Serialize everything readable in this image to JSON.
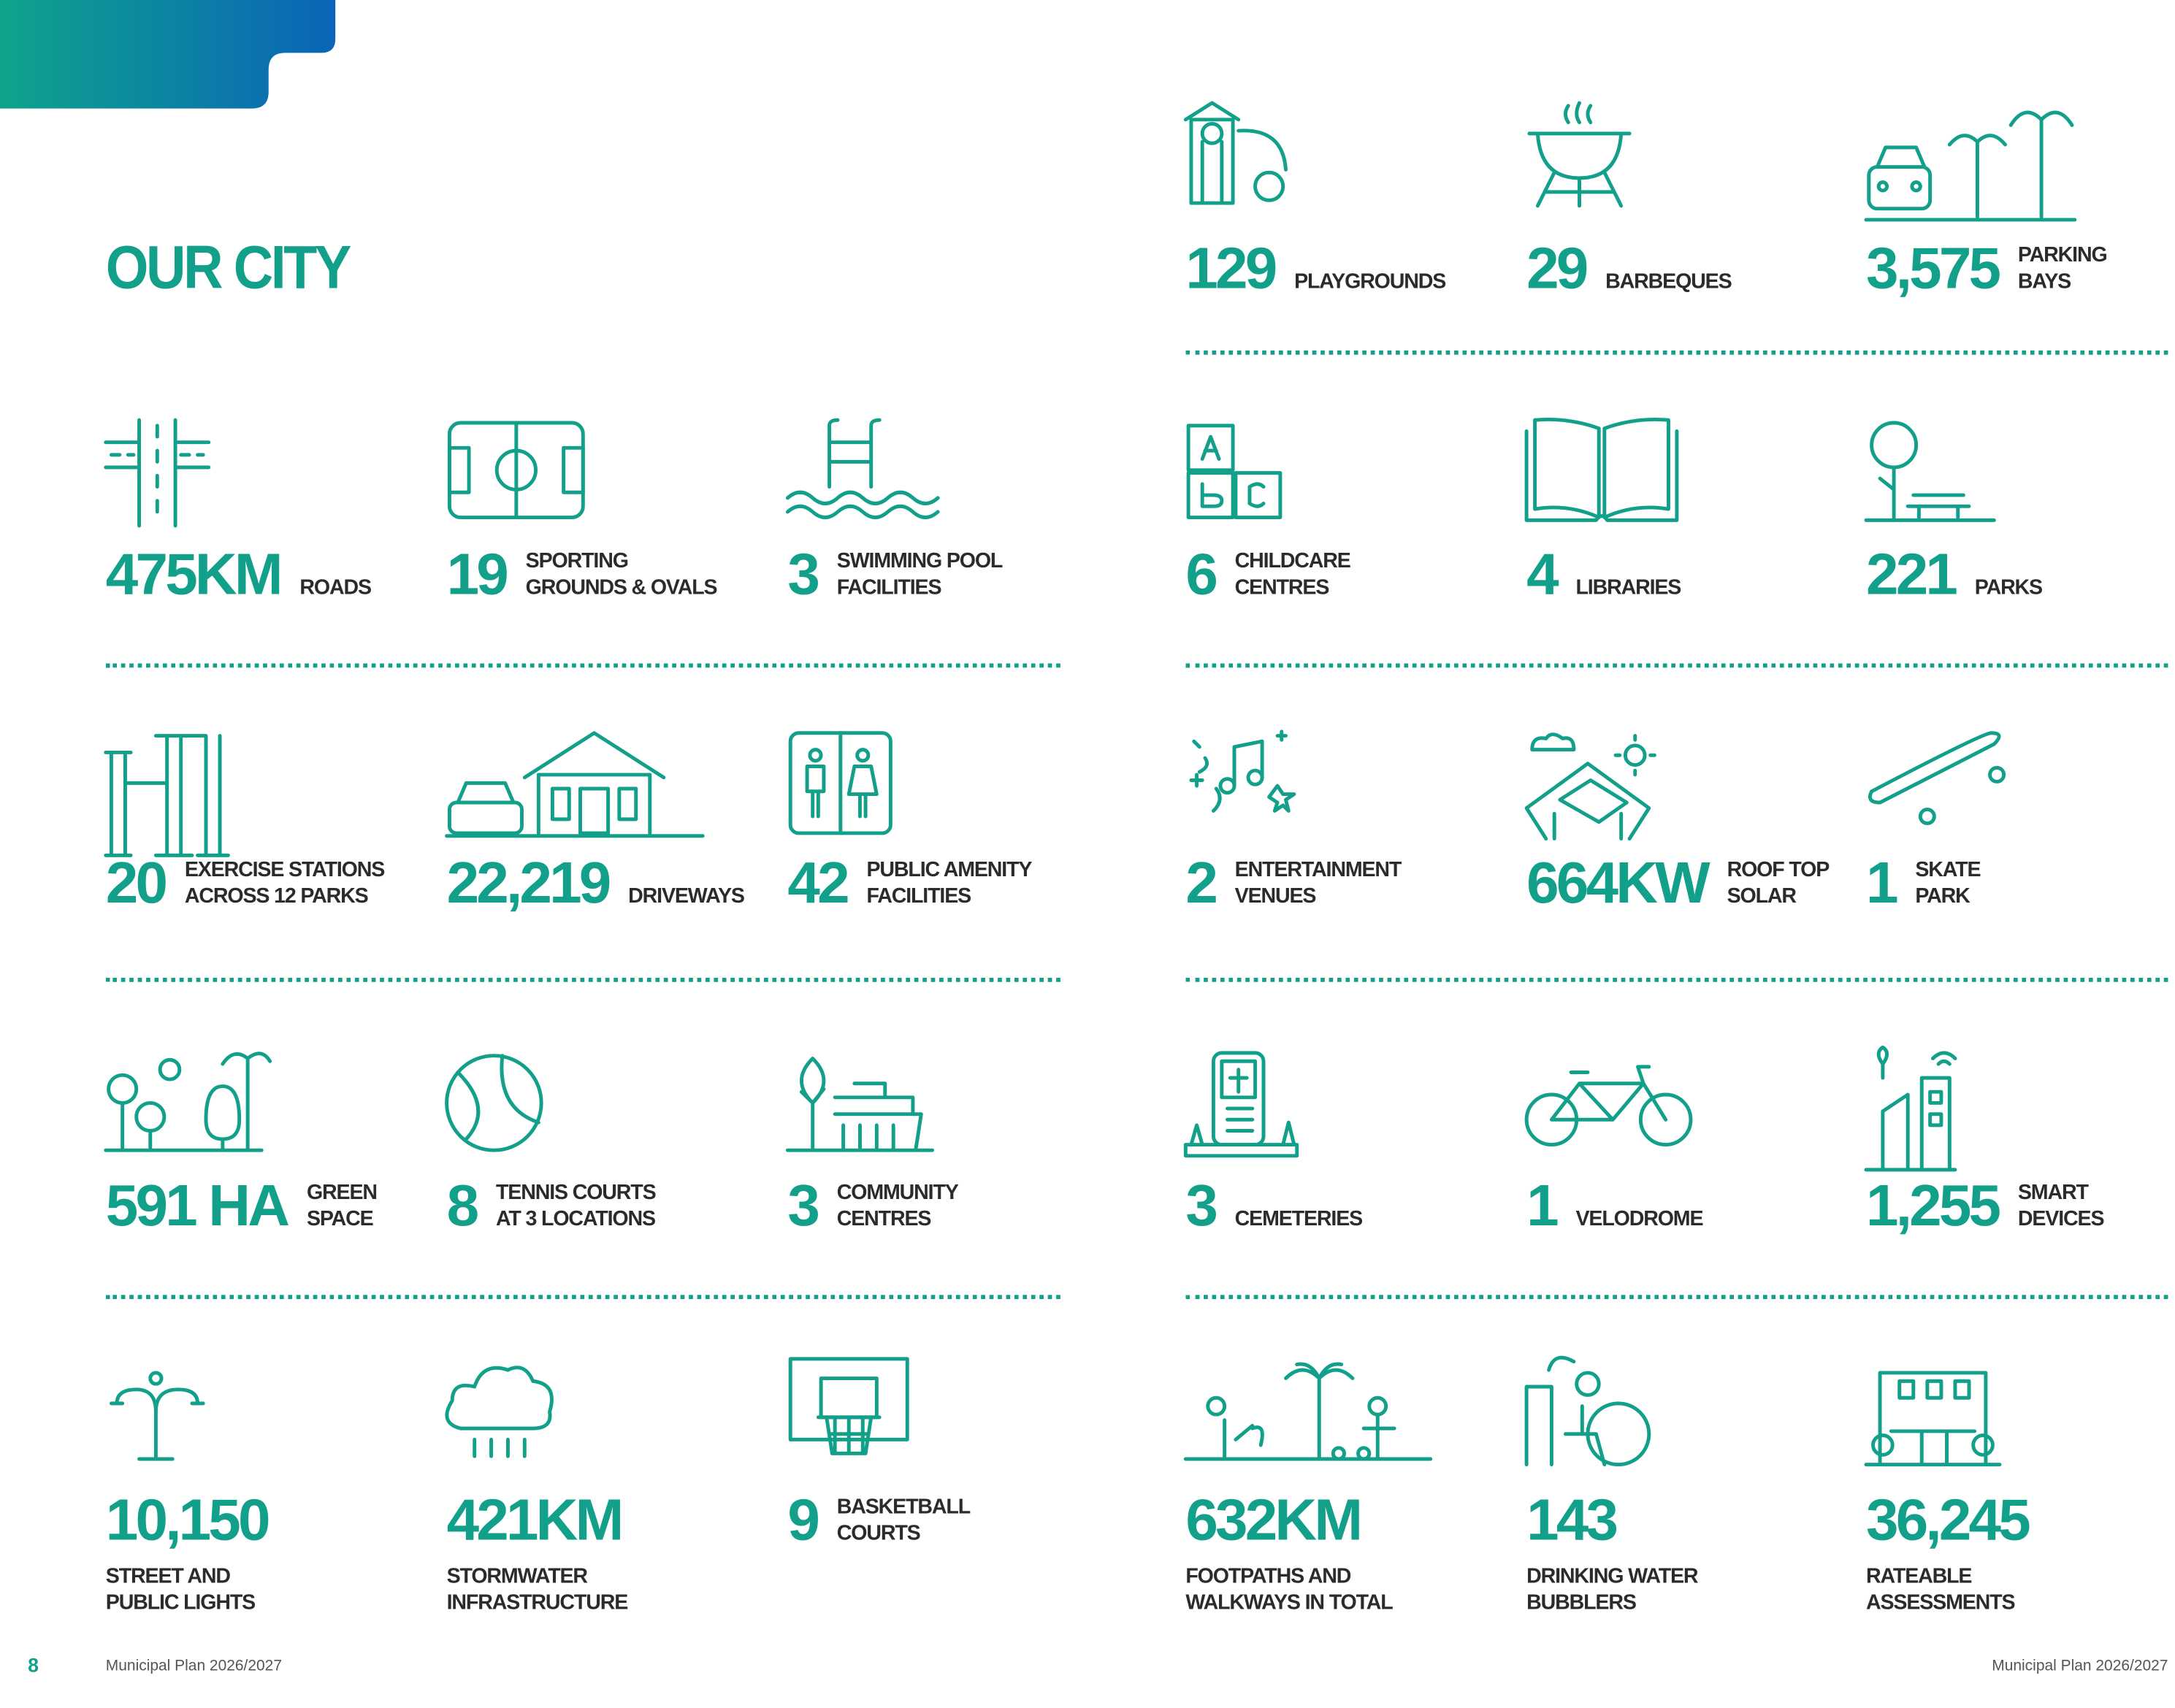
{
  "header": {
    "title": "OUR CITY"
  },
  "stats": [
    {
      "number": "129",
      "label": [
        "PLAYGROUNDS"
      ]
    },
    {
      "number": "29",
      "label": [
        "BARBEQUES"
      ]
    },
    {
      "number": "3,575",
      "label": [
        "PARKING",
        "BAYS"
      ]
    },
    {
      "number": "475KM",
      "label": [
        "ROADS"
      ]
    },
    {
      "number": "19",
      "label": [
        "SPORTING",
        "GROUNDS & OVALS"
      ]
    },
    {
      "number": "3",
      "label": [
        "SWIMMING POOL",
        "FACILITIES"
      ]
    },
    {
      "number": "6",
      "label": [
        "CHILDCARE",
        "CENTRES"
      ]
    },
    {
      "number": "4",
      "label": [
        "LIBRARIES"
      ]
    },
    {
      "number": "221",
      "label": [
        "PARKS"
      ]
    },
    {
      "number": "20",
      "label": [
        "EXERCISE STATIONS",
        "ACROSS 12 PARKS"
      ]
    },
    {
      "number": "22,219",
      "label": [
        "DRIVEWAYS"
      ]
    },
    {
      "number": "42",
      "label": [
        "PUBLIC AMENITY",
        "FACILITIES"
      ]
    },
    {
      "number": "2",
      "label": [
        "ENTERTAINMENT",
        "VENUES"
      ]
    },
    {
      "number": "664KW",
      "label": [
        "ROOF TOP",
        "SOLAR"
      ]
    },
    {
      "number": "1",
      "label": [
        "SKATE",
        "PARK"
      ]
    },
    {
      "number": "591 HA",
      "label": [
        "GREEN",
        "SPACE"
      ]
    },
    {
      "number": "8",
      "label": [
        "TENNIS COURTS",
        "AT 3 LOCATIONS"
      ]
    },
    {
      "number": "3",
      "label": [
        "COMMUNITY",
        "CENTRES"
      ]
    },
    {
      "number": "3",
      "label": [
        "CEMETERIES"
      ]
    },
    {
      "number": "1",
      "label": [
        "VELODROME"
      ]
    },
    {
      "number": "1,255",
      "label": [
        "SMART",
        "DEVICES"
      ]
    },
    {
      "number": "10,150",
      "label": [
        "STREET AND",
        "PUBLIC LIGHTS"
      ]
    },
    {
      "number": "421KM",
      "label": [
        "STORMWATER",
        "INFRASTRUCTURE"
      ]
    },
    {
      "number": "9",
      "label": [
        "BASKETBALL",
        "COURTS"
      ]
    },
    {
      "number": "632KM",
      "label": [
        "FOOTPATHS AND",
        "WALKWAYS IN TOTAL"
      ]
    },
    {
      "number": "143",
      "label": [
        "DRINKING WATER",
        "BUBBLERS"
      ]
    },
    {
      "number": "36,245",
      "label": [
        "RATEABLE",
        "ASSESSMENTS"
      ]
    }
  ],
  "footer": {
    "page_number": "8",
    "left_text": "Municipal Plan 2026/2027",
    "right_text": "Municipal Plan 2026/2027"
  }
}
